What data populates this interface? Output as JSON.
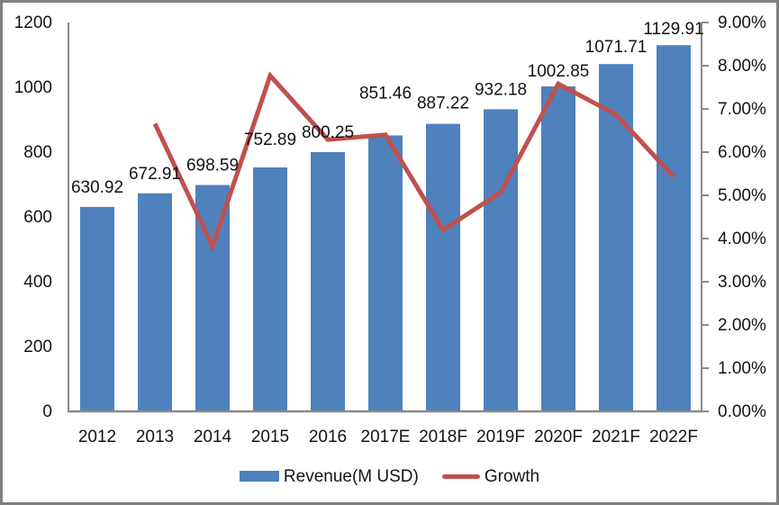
{
  "chart_data": {
    "type": "combo-bar-line",
    "title": "",
    "categories": [
      "2012",
      "2013",
      "2014",
      "2015",
      "2016",
      "2017E",
      "2018F",
      "2019F",
      "2020F",
      "2021F",
      "2022F"
    ],
    "series": [
      {
        "name": "Revenue(M USD)",
        "chart_type": "bar",
        "axis": "left",
        "color": "#4F81BD",
        "values": [
          630.92,
          672.91,
          698.59,
          752.89,
          800.25,
          851.46,
          887.22,
          932.18,
          1002.85,
          1071.71,
          1129.91
        ],
        "data_labels": [
          "630.92",
          "672.91",
          "698.59",
          "752.89",
          "800.25",
          "851.46",
          "887.22",
          "932.18",
          "1002.85",
          "1071.71",
          "1129.91"
        ]
      },
      {
        "name": "Growth",
        "chart_type": "line",
        "axis": "right",
        "color": "#C0504D",
        "unit": "percent",
        "values": [
          null,
          6.66,
          3.82,
          7.77,
          6.29,
          6.4,
          4.2,
          5.07,
          7.58,
          6.87,
          5.43
        ]
      }
    ],
    "left_axis": {
      "min": 0,
      "max": 1200,
      "step": 200,
      "tick_labels": [
        "1200",
        "1000",
        "800",
        "600",
        "400",
        "200",
        "0"
      ]
    },
    "right_axis": {
      "min": 0,
      "max": 9,
      "step": 1,
      "tick_labels": [
        "9.00%",
        "8.00%",
        "7.00%",
        "6.00%",
        "5.00%",
        "4.00%",
        "3.00%",
        "2.00%",
        "1.00%",
        "0.00%"
      ]
    },
    "grid": false,
    "legend_position": "bottom"
  },
  "colors": {
    "bar": "#4F81BD",
    "line": "#C0504D",
    "axis_line": "#8A8A8A",
    "frame_border": "#808080",
    "text": "#141414",
    "background": "#FFFFFF"
  }
}
